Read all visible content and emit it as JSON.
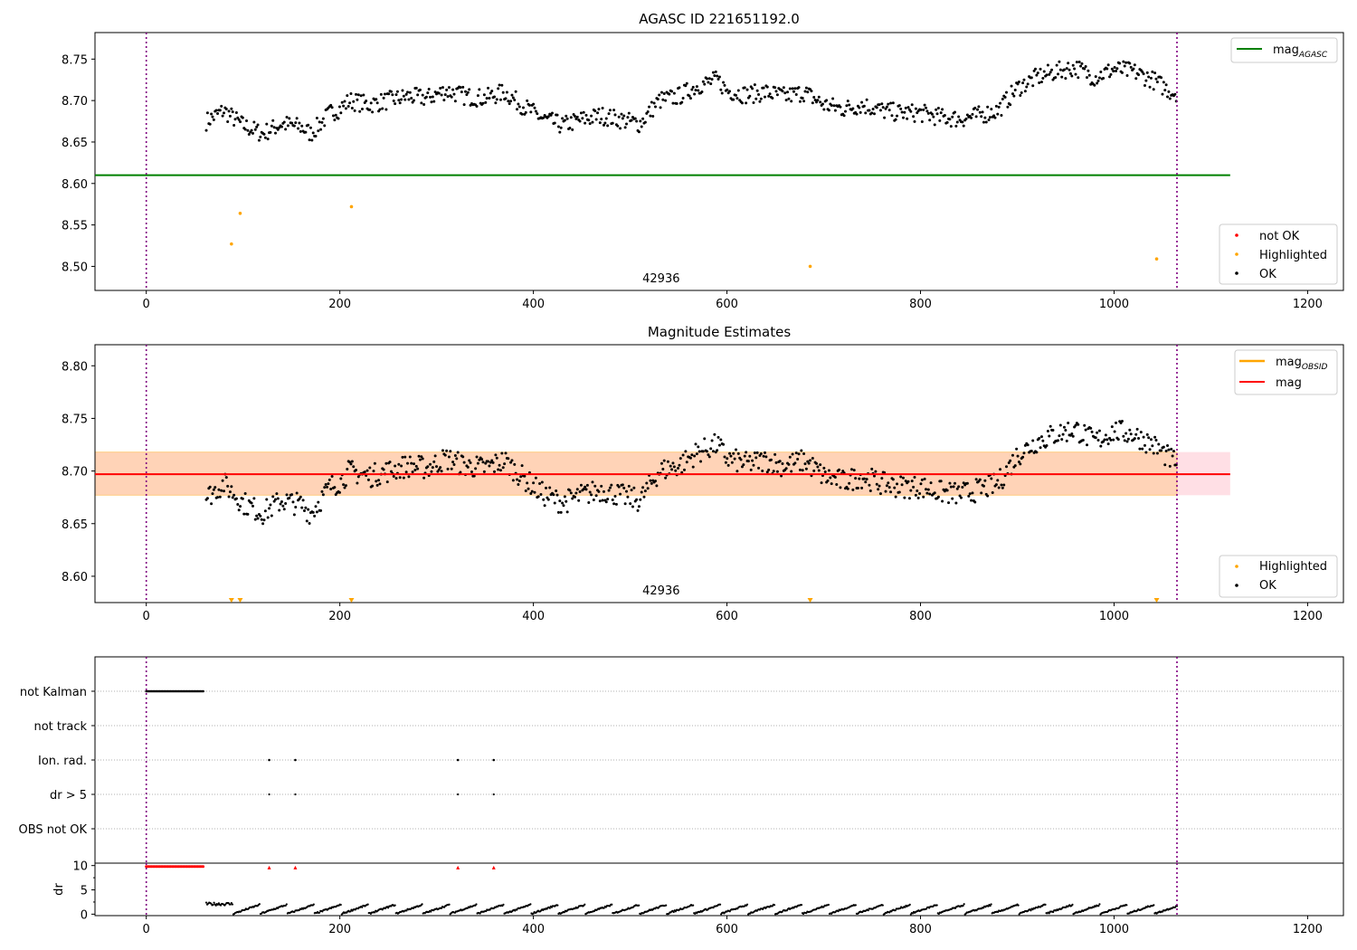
{
  "chart_data": [
    {
      "type": "scatter",
      "title": "AGASC ID 221651192.0",
      "xlabel": "",
      "ylabel": "",
      "xlim": [
        -53,
        1237
      ],
      "ylim": [
        8.471,
        8.782
      ],
      "xticks": [
        0,
        200,
        400,
        600,
        800,
        1000,
        1200
      ],
      "yticks": [
        8.5,
        8.55,
        8.6,
        8.65,
        8.7,
        8.75
      ],
      "vlines": [
        0,
        1065
      ],
      "obsid_label": {
        "x": 532,
        "text": "42936"
      },
      "hline": {
        "name": "mag_{AGASC}",
        "y": 8.61,
        "x": [
          -53,
          1120
        ],
        "color": "#008000"
      },
      "series": [
        {
          "name": "not OK",
          "color": "#ff0000",
          "x": [],
          "y": []
        },
        {
          "name": "Highlighted",
          "color": "#ffa500",
          "x": [
            88,
            97,
            212,
            686,
            1044
          ],
          "y": [
            8.527,
            8.564,
            8.572,
            8.5,
            8.509
          ]
        },
        {
          "name": "OK",
          "color": "#000000",
          "x": [
            62,
            80,
            100,
            120,
            140,
            160,
            170,
            190,
            200,
            210,
            230,
            250,
            270,
            290,
            310,
            330,
            350,
            370,
            390,
            410,
            430,
            450,
            470,
            490,
            510,
            530,
            550,
            570,
            590,
            600,
            620,
            640,
            660,
            680,
            700,
            720,
            740,
            760,
            780,
            800,
            820,
            840,
            860,
            880,
            900,
            920,
            940,
            960,
            980,
            1000,
            1020,
            1040,
            1060
          ],
          "y": [
            8.675,
            8.688,
            8.67,
            8.66,
            8.672,
            8.668,
            8.66,
            8.685,
            8.69,
            8.7,
            8.695,
            8.7,
            8.705,
            8.703,
            8.712,
            8.705,
            8.703,
            8.71,
            8.693,
            8.678,
            8.67,
            8.677,
            8.682,
            8.677,
            8.672,
            8.7,
            8.705,
            8.718,
            8.725,
            8.712,
            8.707,
            8.71,
            8.705,
            8.71,
            8.695,
            8.69,
            8.695,
            8.688,
            8.685,
            8.685,
            8.68,
            8.678,
            8.682,
            8.688,
            8.715,
            8.728,
            8.735,
            8.74,
            8.728,
            8.738,
            8.735,
            8.725,
            8.71
          ]
        }
      ],
      "legends": [
        [
          "mag_{AGASC}"
        ],
        [
          "not OK",
          "Highlighted",
          "OK"
        ]
      ]
    },
    {
      "type": "scatter",
      "title": "Magnitude Estimates",
      "xlabel": "",
      "ylabel": "",
      "xlim": [
        -53,
        1237
      ],
      "ylim": [
        8.575,
        8.82
      ],
      "xticks": [
        0,
        200,
        400,
        600,
        800,
        1000,
        1200
      ],
      "yticks": [
        8.6,
        8.65,
        8.7,
        8.75,
        8.8
      ],
      "vlines": [
        0,
        1065
      ],
      "obsid_label": {
        "x": 532,
        "text": "42936"
      },
      "bands": [
        {
          "y": [
            8.677,
            8.718
          ],
          "x": [
            -53,
            1120
          ],
          "color": "#ffc0cb"
        },
        {
          "y": [
            8.677,
            8.718
          ],
          "x": [
            -53,
            1065
          ],
          "color": "#ffa500"
        }
      ],
      "lines": [
        {
          "name": "mag_{OBSID}",
          "y": 8.697,
          "color": "#ffa500"
        },
        {
          "name": "mag",
          "y": 8.697,
          "color": "#ff0000"
        }
      ],
      "highlight_markers_x": [
        88,
        97,
        212,
        686,
        1044
      ],
      "legends": [
        [
          "mag_{OBSID}",
          "mag"
        ],
        [
          "Highlighted",
          "OK"
        ]
      ]
    },
    {
      "type": "scatter",
      "title": "",
      "xlim": [
        -53,
        1237
      ],
      "xticks": [
        0,
        200,
        400,
        600,
        800,
        1000,
        1200
      ],
      "vlines": [
        0,
        1065
      ],
      "flag_labels": [
        "not Kalman",
        "not track",
        "Ion. rad.",
        "dr > 5",
        "OBS not OK"
      ],
      "flags": {
        "not Kalman": {
          "range": [
            0,
            60
          ]
        },
        "not track": {
          "x": []
        },
        "Ion. rad.": {
          "x": [
            127,
            154,
            322,
            359
          ]
        },
        "dr > 5": {
          "x": [
            127,
            154,
            322,
            359
          ]
        },
        "OBS not OK": {
          "x": []
        }
      }
    },
    {
      "type": "scatter",
      "title": "",
      "ylabel": "dr",
      "xlim": [
        -53,
        1237
      ],
      "ylim": [
        -0.3,
        10.5
      ],
      "xticks": [
        0,
        200,
        400,
        600,
        800,
        1000,
        1200
      ],
      "yticks": [
        0,
        5,
        10
      ],
      "vlines": [
        0,
        1065
      ],
      "capped_x": [
        127,
        154,
        322,
        359
      ],
      "capped_range": [
        0,
        60
      ],
      "cap_value": 10,
      "series_start": 60,
      "series_end": 1065
    }
  ]
}
